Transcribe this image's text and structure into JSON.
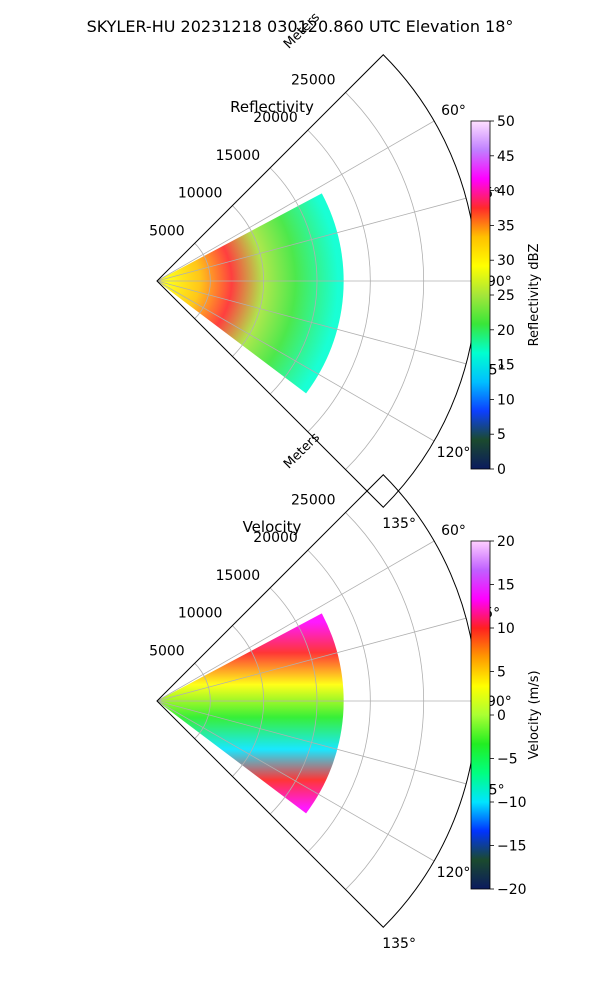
{
  "figure": {
    "suptitle": "SKYLER-HU  20231218  030120.860 UTC Elevation 18°"
  },
  "chart_data": [
    {
      "type": "heatmap",
      "projection": "polar-sector",
      "title": "Reflectivity",
      "radial_label": "Meters",
      "radial_ticks": [
        5000,
        10000,
        15000,
        20000,
        25000
      ],
      "radial_tick_labels": [
        "5000",
        "10000",
        "15000",
        "20000",
        "25000"
      ],
      "rmax": 30000,
      "azimuth_range_deg": [
        45,
        135
      ],
      "azimuth_ticks_deg": [
        60,
        75,
        90,
        105,
        120,
        135
      ],
      "azimuth_tick_labels": [
        "60°",
        "75°",
        "90°",
        "105°",
        "120°",
        "135°"
      ],
      "grid": true,
      "colorbar": {
        "label": "Reflectivity dBZ",
        "min": 0,
        "max": 50,
        "ticks": [
          0,
          5,
          10,
          15,
          20,
          25,
          30,
          35,
          40,
          45,
          50
        ],
        "tick_labels": [
          "0",
          "5",
          "10",
          "15",
          "20",
          "25",
          "30",
          "35",
          "40",
          "45",
          "50"
        ],
        "colors": [
          "#0b1b5e",
          "#1b4a2e",
          "#0c3fff",
          "#00bfff",
          "#00ffd0",
          "#39e639",
          "#a5e63a",
          "#ffff00",
          "#ffc000",
          "#ff2a2a",
          "#ff00ff",
          "#c080ff",
          "#ffe0ff"
        ]
      },
      "echo": {
        "max_range_m": 17500,
        "azimuth_extent_deg": [
          62,
          127
        ],
        "profile": [
          {
            "range_m": 1000,
            "value": 30
          },
          {
            "range_m": 4000,
            "value": 34
          },
          {
            "range_m": 7000,
            "value": 36
          },
          {
            "range_m": 10000,
            "value": 26
          },
          {
            "range_m": 13000,
            "value": 20
          },
          {
            "range_m": 17000,
            "value": 17
          }
        ]
      }
    },
    {
      "type": "heatmap",
      "projection": "polar-sector",
      "title": "Velocity",
      "radial_label": "Meters",
      "radial_ticks": [
        5000,
        10000,
        15000,
        20000,
        25000
      ],
      "radial_tick_labels": [
        "5000",
        "10000",
        "15000",
        "20000",
        "25000"
      ],
      "rmax": 30000,
      "azimuth_range_deg": [
        45,
        135
      ],
      "azimuth_ticks_deg": [
        60,
        75,
        90,
        105,
        120,
        135
      ],
      "azimuth_tick_labels": [
        "60°",
        "75°",
        "90°",
        "105°",
        "120°",
        "135°"
      ],
      "grid": true,
      "colorbar": {
        "label": "Velocity (m/s)",
        "min": -20,
        "max": 20,
        "ticks": [
          -20,
          -15,
          -10,
          -5,
          0,
          5,
          10,
          15,
          20
        ],
        "tick_labels": [
          "−20",
          "−15",
          "−10",
          "−5",
          "0",
          "5",
          "10",
          "15",
          "20"
        ],
        "colors": [
          "#0b1b5e",
          "#1b4a2e",
          "#0033ff",
          "#00e5ff",
          "#00ff80",
          "#22ee22",
          "#aaff33",
          "#ffff00",
          "#ff9900",
          "#ff2020",
          "#ff00ff",
          "#c060ff",
          "#ffd0ff"
        ]
      },
      "echo": {
        "max_range_m": 17500,
        "azimuth_extent_deg": [
          62,
          127
        ],
        "profile": [
          {
            "azimuth_deg": 65,
            "value": 14
          },
          {
            "azimuth_deg": 75,
            "value": 10
          },
          {
            "azimuth_deg": 85,
            "value": 2
          },
          {
            "azimuth_deg": 95,
            "value": -3
          },
          {
            "azimuth_deg": 105,
            "value": -10
          },
          {
            "azimuth_deg": 115,
            "value": 9
          },
          {
            "azimuth_deg": 125,
            "value": 14
          }
        ]
      }
    }
  ]
}
